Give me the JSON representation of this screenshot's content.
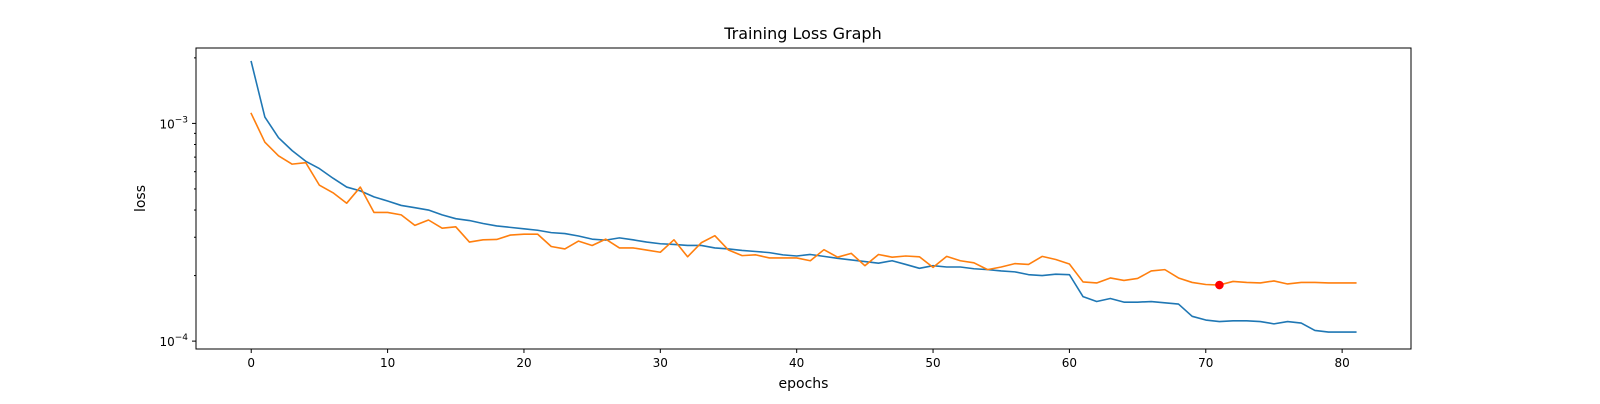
{
  "chart_data": {
    "type": "line",
    "title": "Training Loss Graph",
    "xlabel": "epochs",
    "ylabel": "loss",
    "xlim": [
      -4.05,
      85.05
    ],
    "ylim": [
      9.2e-05,
      0.00222
    ],
    "yscale": "log",
    "grid": false,
    "x_ticks": [
      {
        "value": 0,
        "label": "0"
      },
      {
        "value": 10,
        "label": "10"
      },
      {
        "value": 20,
        "label": "20"
      },
      {
        "value": 30,
        "label": "30"
      },
      {
        "value": 40,
        "label": "40"
      },
      {
        "value": 50,
        "label": "50"
      },
      {
        "value": 60,
        "label": "60"
      },
      {
        "value": 70,
        "label": "70"
      },
      {
        "value": 80,
        "label": "80"
      }
    ],
    "y_ticks": [
      {
        "value": 0.0001,
        "base": "10",
        "exp": "−4"
      },
      {
        "value": 0.001,
        "base": "10",
        "exp": "−3"
      }
    ],
    "series": [
      {
        "color": "#1f77b4",
        "values": [
          0.00192,
          0.00107,
          0.00086,
          0.00075,
          0.00067,
          0.00062,
          0.00056,
          0.00051,
          0.00049,
          0.00046,
          0.00044,
          0.00042,
          0.00041,
          0.0004,
          0.00038,
          0.000365,
          0.000358,
          0.000347,
          0.000338,
          0.000333,
          0.000328,
          0.000323,
          0.000315,
          0.000312,
          0.000304,
          0.000294,
          0.000291,
          0.000298,
          0.000292,
          0.000285,
          0.00028,
          0.000278,
          0.000275,
          0.000275,
          0.000268,
          0.000265,
          0.000261,
          0.000258,
          0.000255,
          0.000249,
          0.000246,
          0.00025,
          0.000245,
          0.00024,
          0.000236,
          0.000232,
          0.000228,
          0.000234,
          0.000225,
          0.000216,
          0.000222,
          0.000219,
          0.000219,
          0.000215,
          0.000213,
          0.00021,
          0.000208,
          0.000202,
          0.0002,
          0.000203,
          0.000202,
          0.00016,
          0.000152,
          0.000157,
          0.000151,
          0.000151,
          0.000152,
          0.00015,
          0.000148,
          0.00013,
          0.000125,
          0.000123,
          0.000124,
          0.000124,
          0.000123,
          0.00012,
          0.000123,
          0.000121,
          0.000112,
          0.00011,
          0.00011,
          0.00011
        ]
      },
      {
        "color": "#ff7f0e",
        "values": [
          0.00111,
          0.00082,
          0.00071,
          0.00065,
          0.00066,
          0.00052,
          0.00048,
          0.00043,
          0.00051,
          0.00039,
          0.00039,
          0.00038,
          0.00034,
          0.00036,
          0.00033,
          0.000335,
          0.000285,
          0.000292,
          0.000293,
          0.000307,
          0.00031,
          0.00031,
          0.000272,
          0.000265,
          0.000288,
          0.000275,
          0.000294,
          0.000268,
          0.000268,
          0.000262,
          0.000256,
          0.000292,
          0.000244,
          0.000283,
          0.000305,
          0.000262,
          0.000247,
          0.000249,
          0.000241,
          0.000241,
          0.000241,
          0.000234,
          0.000263,
          0.000243,
          0.000253,
          0.000222,
          0.00025,
          0.000243,
          0.000246,
          0.000244,
          0.000218,
          0.000245,
          0.000234,
          0.000229,
          0.000213,
          0.000219,
          0.000227,
          0.000225,
          0.000245,
          0.000237,
          0.000226,
          0.000187,
          0.000185,
          0.000195,
          0.00019,
          0.000194,
          0.00021,
          0.000213,
          0.000195,
          0.000186,
          0.000182,
          0.000181,
          0.000188,
          0.000186,
          0.000185,
          0.000189,
          0.000183,
          0.000186,
          0.000186,
          0.000185,
          0.000185,
          0.000185
        ]
      }
    ],
    "annotations": [
      {
        "type": "marker",
        "x": 71,
        "y": 0.000181,
        "color": "#ff0000"
      }
    ]
  }
}
